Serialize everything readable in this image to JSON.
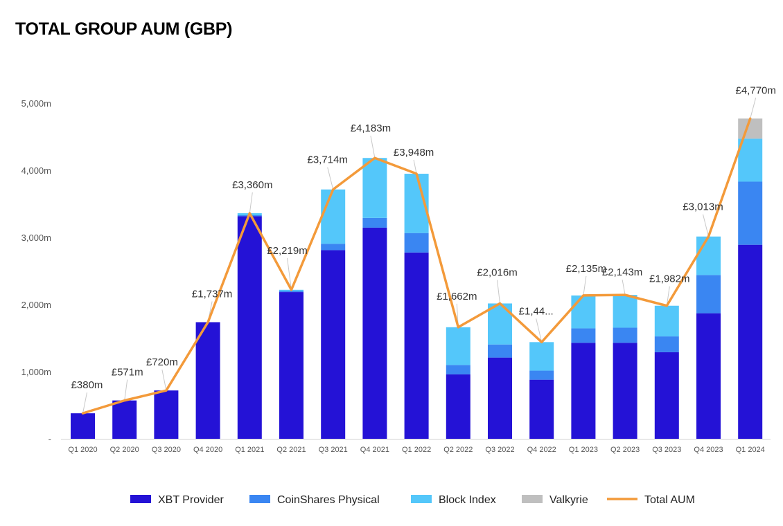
{
  "chart_data": {
    "type": "bar",
    "stacked": true,
    "title": "TOTAL GROUP AUM (GBP)",
    "xlabel": "",
    "ylabel": "",
    "ylim": [
      0,
      5000
    ],
    "yticks": [
      0,
      1000,
      2000,
      3000,
      4000,
      5000
    ],
    "ytick_labels": [
      "-",
      "1,000m",
      "2,000m",
      "3,000m",
      "4,000m",
      "5,000m"
    ],
    "categories": [
      "Q1 2020",
      "Q2 2020",
      "Q3 2020",
      "Q4 2020",
      "Q1 2021",
      "Q2 2021",
      "Q3 2021",
      "Q4 2021",
      "Q1 2022",
      "Q2 2022",
      "Q3 2022",
      "Q4 2022",
      "Q1 2023",
      "Q2 2023",
      "Q3 2023",
      "Q4 2023",
      "Q1 2024"
    ],
    "series": [
      {
        "name": "XBT Provider",
        "color": "#2412d6",
        "values": [
          380,
          571,
          720,
          1737,
          3315,
          2185,
          2810,
          3145,
          2775,
          960,
          1210,
          880,
          1430,
          1430,
          1290,
          1870,
          2890
        ]
      },
      {
        "name": "CoinShares Physical",
        "color": "#3a86f2",
        "values": [
          0,
          0,
          0,
          0,
          15,
          20,
          95,
          145,
          290,
          140,
          195,
          135,
          215,
          225,
          235,
          570,
          940
        ]
      },
      {
        "name": "Block Index",
        "color": "#54c7fa",
        "values": [
          0,
          0,
          0,
          0,
          30,
          14,
          809,
          893,
          883,
          562,
          611,
          425,
          490,
          488,
          457,
          573,
          640
        ]
      },
      {
        "name": "Valkyrie",
        "color": "#bfbfbf",
        "values": [
          0,
          0,
          0,
          0,
          0,
          0,
          0,
          0,
          0,
          0,
          0,
          0,
          0,
          0,
          0,
          0,
          300
        ]
      }
    ],
    "line": {
      "name": "Total AUM",
      "color": "#f39a3a",
      "values": [
        380,
        571,
        720,
        1737,
        3360,
        2219,
        3714,
        4183,
        3948,
        1662,
        2016,
        1440,
        2135,
        2143,
        1982,
        3013,
        4770
      ]
    },
    "data_labels": [
      "£380m",
      "£571m",
      "£720m",
      "£1,737m",
      "£3,360m",
      "£2,219m",
      "£3,714m",
      "£4,183m",
      "£3,948m",
      "£1,662m",
      "£2,016m",
      "£1,44...",
      "£2,135m",
      "£2,143m",
      "£1,982m",
      "£3,013m",
      "£4,770m"
    ],
    "grid": false,
    "legend": "bottom",
    "legend_entries": [
      "XBT Provider",
      "CoinShares Physical",
      "Block Index",
      "Valkyrie",
      "Total AUM"
    ]
  }
}
